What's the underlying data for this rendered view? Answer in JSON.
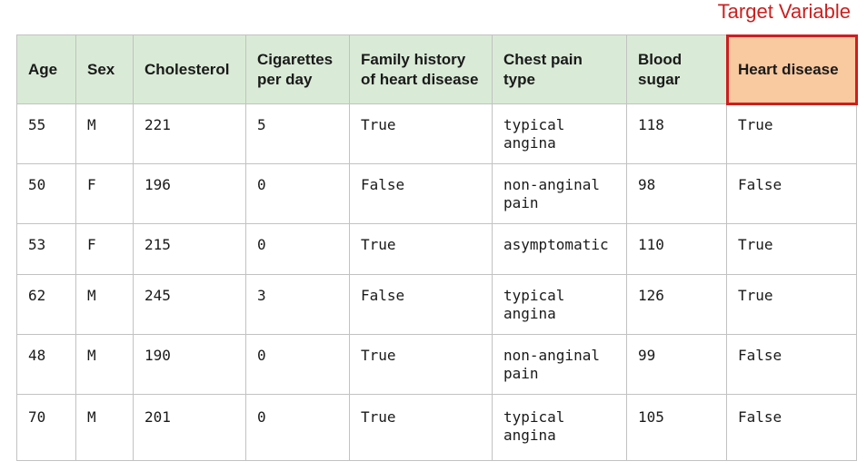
{
  "target_label": "Target Variable",
  "table": {
    "headers": [
      "Age",
      "Sex",
      "Cholesterol",
      "Cigarettes per day",
      "Family history of heart disease",
      "Chest pain type",
      "Blood sugar",
      "Heart disease"
    ],
    "rows": [
      [
        "55",
        "M",
        "221",
        "5",
        "True",
        "typical angina",
        "118",
        "True"
      ],
      [
        "50",
        "F",
        "196",
        "0",
        "False",
        "non-anginal pain",
        "98",
        "False"
      ],
      [
        "53",
        "F",
        "215",
        "0",
        "True",
        "asymptomatic",
        "110",
        "True"
      ],
      [
        "62",
        "M",
        "245",
        "3",
        "False",
        "typical angina",
        "126",
        "True"
      ],
      [
        "48",
        "M",
        "190",
        "0",
        "True",
        "non-anginal pain",
        "99",
        "False"
      ],
      [
        "70",
        "M",
        "201",
        "0",
        "True",
        "typical angina",
        "105",
        "False"
      ]
    ]
  },
  "colors": {
    "header_bg": "#d9ebd6",
    "target_bg": "#f9c99f",
    "target_accent": "#cc1f1f",
    "grid": "#c2c2c2"
  }
}
